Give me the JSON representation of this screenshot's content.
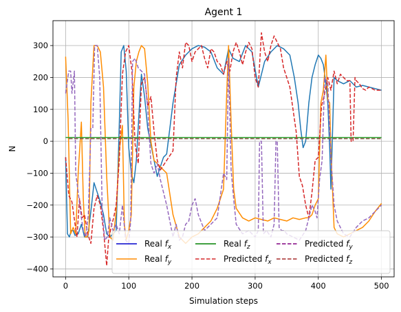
{
  "chart_data": {
    "type": "line",
    "title": "Agent 1",
    "xlabel": "Simulation steps",
    "ylabel": "N",
    "xlim": [
      -20,
      520
    ],
    "ylim": [
      -425,
      378
    ],
    "xticks": [
      0,
      100,
      200,
      300,
      400,
      500
    ],
    "yticks": [
      -400,
      -300,
      -200,
      -100,
      0,
      100,
      200,
      300
    ],
    "grid": true,
    "legend_position": "bottom-center",
    "legend_entries": [
      {
        "label": "Real f_x",
        "color": "#0000cc",
        "dash": "solid"
      },
      {
        "label": "Real f_y",
        "color": "#ff8c00",
        "dash": "solid"
      },
      {
        "label": "Real f_z",
        "color": "#008000",
        "dash": "solid"
      },
      {
        "label": "Predicted f_x",
        "color": "#d62728",
        "dash": "dashed"
      },
      {
        "label": "Predicted f_y",
        "color": "#800080",
        "dash": "dashed"
      },
      {
        "label": "Predicted f_z",
        "color": "#a52a2a",
        "dash": "dashed"
      }
    ],
    "series": [
      {
        "name": "Real f_x (plotted)",
        "color": "#1f77b4",
        "dash": "solid",
        "x": [
          0,
          3,
          6,
          9,
          12,
          15,
          20,
          25,
          30,
          35,
          40,
          45,
          50,
          55,
          60,
          65,
          70,
          75,
          80,
          85,
          88,
          92,
          96,
          100,
          104,
          108,
          112,
          116,
          120,
          125,
          130,
          135,
          140,
          145,
          150,
          155,
          160,
          170,
          180,
          190,
          200,
          210,
          220,
          230,
          240,
          250,
          258,
          265,
          275,
          285,
          295,
          305,
          315,
          325,
          335,
          345,
          355,
          362,
          368,
          372,
          376,
          380,
          385,
          390,
          395,
          400,
          404,
          408,
          412,
          415,
          418,
          420,
          425,
          430,
          440,
          450,
          460,
          470,
          480,
          490,
          500
        ],
        "y": [
          -50,
          -290,
          -300,
          -280,
          -280,
          -295,
          -290,
          -260,
          -300,
          -300,
          -220,
          -130,
          -160,
          -190,
          -230,
          -290,
          -300,
          -290,
          -280,
          50,
          280,
          300,
          220,
          -20,
          -100,
          -130,
          -60,
          80,
          210,
          140,
          40,
          -10,
          -60,
          -110,
          -80,
          -50,
          -40,
          120,
          240,
          270,
          290,
          300,
          295,
          280,
          230,
          210,
          290,
          260,
          250,
          300,
          280,
          170,
          250,
          280,
          300,
          290,
          270,
          200,
          120,
          40,
          -20,
          0,
          120,
          200,
          240,
          270,
          260,
          240,
          180,
          120,
          -20,
          -150,
          200,
          190,
          180,
          190,
          170,
          175,
          170,
          165,
          160
        ]
      },
      {
        "name": "Real f_y",
        "color": "#ff8c00",
        "dash": "solid",
        "x": [
          0,
          4,
          8,
          12,
          16,
          20,
          25,
          28,
          31,
          34,
          37,
          40,
          45,
          50,
          55,
          60,
          65,
          70,
          75,
          80,
          85,
          90,
          93,
          96,
          100,
          104,
          108,
          112,
          116,
          120,
          125,
          130,
          135,
          140,
          145,
          150,
          155,
          160,
          170,
          180,
          190,
          200,
          210,
          220,
          230,
          240,
          250,
          255,
          258,
          262,
          266,
          270,
          280,
          290,
          300,
          310,
          320,
          330,
          340,
          350,
          360,
          370,
          380,
          385,
          390,
          395,
          400,
          404,
          408,
          412,
          415,
          418,
          420,
          425,
          430,
          440,
          450,
          460,
          470,
          480,
          490,
          500
        ],
        "y": [
          265,
          70,
          -290,
          -270,
          -290,
          -100,
          60,
          -180,
          -300,
          -300,
          -280,
          120,
          300,
          300,
          280,
          170,
          -110,
          -300,
          -310,
          -220,
          -30,
          50,
          -260,
          -310,
          -280,
          -230,
          170,
          250,
          280,
          300,
          290,
          180,
          0,
          -60,
          -70,
          -80,
          -90,
          -100,
          -230,
          -300,
          -320,
          -300,
          -290,
          -270,
          -250,
          -210,
          -150,
          150,
          300,
          60,
          -150,
          -210,
          -240,
          -250,
          -240,
          -245,
          -250,
          -240,
          -245,
          -250,
          -240,
          -245,
          -240,
          -240,
          -230,
          -200,
          -180,
          120,
          160,
          270,
          130,
          120,
          -30,
          -270,
          -290,
          -300,
          -290,
          -280,
          -270,
          -250,
          -220,
          -195
        ]
      },
      {
        "name": "Real f_z",
        "color": "#2ca02c",
        "dash": "solid",
        "x": [
          0,
          500
        ],
        "y": [
          12,
          12
        ]
      },
      {
        "name": "Predicted f_x",
        "color": "#d62728",
        "dash": "dashed",
        "x": [
          0,
          5,
          10,
          15,
          18,
          22,
          26,
          30,
          35,
          40,
          45,
          50,
          55,
          60,
          65,
          68,
          72,
          76,
          80,
          85,
          90,
          95,
          100,
          105,
          110,
          115,
          120,
          125,
          130,
          135,
          140,
          145,
          150,
          160,
          170,
          175,
          180,
          185,
          190,
          195,
          200,
          205,
          210,
          215,
          220,
          225,
          230,
          235,
          240,
          245,
          250,
          255,
          260,
          265,
          270,
          275,
          280,
          285,
          290,
          295,
          300,
          305,
          310,
          315,
          320,
          325,
          330,
          335,
          340,
          345,
          350,
          355,
          360,
          365,
          370,
          375,
          380,
          385,
          390,
          395,
          400,
          405,
          410,
          415,
          420,
          425,
          430,
          435,
          440,
          445,
          450,
          452,
          455,
          458,
          460,
          465,
          470,
          475,
          480,
          490,
          500
        ],
        "y": [
          -50,
          -170,
          -190,
          -260,
          -300,
          -180,
          -240,
          -230,
          -290,
          -320,
          -210,
          -170,
          -200,
          -280,
          -390,
          -310,
          -270,
          -240,
          -200,
          -60,
          210,
          280,
          300,
          220,
          -10,
          -70,
          180,
          200,
          110,
          140,
          30,
          -60,
          -90,
          -60,
          -30,
          200,
          280,
          230,
          310,
          300,
          250,
          280,
          290,
          300,
          260,
          230,
          290,
          280,
          250,
          240,
          210,
          250,
          220,
          280,
          310,
          280,
          240,
          280,
          310,
          290,
          200,
          170,
          340,
          280,
          250,
          300,
          330,
          310,
          290,
          230,
          200,
          170,
          100,
          30,
          -110,
          -140,
          -200,
          -240,
          -160,
          -60,
          -50,
          110,
          150,
          200,
          160,
          220,
          180,
          210,
          200,
          190,
          190,
          0,
          0,
          200,
          190,
          180,
          165,
          160,
          170,
          160,
          160
        ]
      },
      {
        "name": "Predicted f_y",
        "color": "#9467bd",
        "dash": "dashed",
        "x": [
          0,
          5,
          8,
          10,
          14,
          16,
          20,
          25,
          28,
          32,
          36,
          40,
          43,
          46,
          50,
          54,
          58,
          62,
          66,
          70,
          75,
          80,
          85,
          90,
          95,
          100,
          103,
          106,
          110,
          115,
          120,
          125,
          130,
          135,
          140,
          145,
          150,
          160,
          170,
          175,
          180,
          185,
          190,
          195,
          200,
          205,
          210,
          220,
          230,
          240,
          250,
          255,
          258,
          262,
          266,
          270,
          280,
          290,
          300,
          305,
          307,
          310,
          313,
          318,
          325,
          330,
          333,
          335,
          338,
          342,
          346,
          350,
          360,
          370,
          380,
          390,
          395,
          398,
          402,
          406,
          410,
          415,
          420,
          425,
          430,
          440,
          450,
          460,
          470,
          480,
          490,
          500
        ],
        "y": [
          150,
          220,
          220,
          150,
          220,
          -100,
          -160,
          -240,
          -280,
          -300,
          -230,
          40,
          40,
          300,
          300,
          200,
          -220,
          -310,
          -300,
          -240,
          -280,
          -260,
          -290,
          -200,
          -310,
          -320,
          -250,
          250,
          260,
          230,
          220,
          210,
          100,
          -70,
          -100,
          -70,
          -120,
          -200,
          -300,
          -260,
          -310,
          -300,
          -260,
          -250,
          -200,
          -180,
          -230,
          -280,
          -260,
          -240,
          -100,
          -120,
          260,
          -90,
          -180,
          -260,
          -290,
          -280,
          -300,
          -280,
          0,
          0,
          -290,
          -280,
          -300,
          -260,
          0,
          0,
          -270,
          -280,
          -280,
          -290,
          -300,
          -310,
          -280,
          -200,
          -220,
          -240,
          -120,
          -60,
          200,
          180,
          -50,
          -200,
          -250,
          -290,
          -300,
          -270,
          -250,
          -240,
          -220,
          -200
        ]
      },
      {
        "name": "Predicted f_z",
        "color": "#8c564b",
        "dash": "dashed",
        "x": [
          5,
          500
        ],
        "y": [
          8,
          8
        ]
      }
    ]
  }
}
